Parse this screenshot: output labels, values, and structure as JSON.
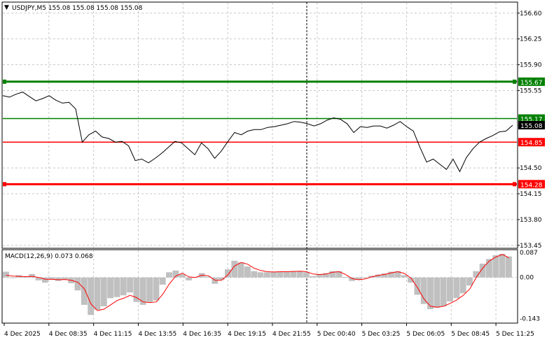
{
  "header": {
    "symbol_label": "USDJPY,M5  155.08 155.08 155.08 155.08",
    "macd_label": "MACD(12,26,9) 0.073 0.068"
  },
  "colors": {
    "price_line": "#000000",
    "grid": "#c8c8c8",
    "green_level": "#008000",
    "red_level": "#ff0000",
    "hist": "#c0c0c0",
    "signal": "#ff0000"
  },
  "chart_data": [
    {
      "type": "line",
      "name": "price",
      "y_ticks": [
        "156.60",
        "156.25",
        "155.90",
        "155.55",
        "155.17",
        "155.08",
        "154.85",
        "154.50",
        "154.28",
        "154.15",
        "153.80",
        "153.45"
      ],
      "ylim": [
        153.42,
        156.74
      ],
      "x_ticks": [
        "4 Dec 2025",
        "4 Dec 08:35",
        "4 Dec 11:15",
        "4 Dec 13:55",
        "4 Dec 16:35",
        "4 Dec 19:15",
        "4 Dec 21:55",
        "5 Dec 00:40",
        "5 Dec 03:25",
        "5 Dec 06:05",
        "5 Dec 08:45",
        "5 Dec 11:25"
      ],
      "levels": [
        {
          "value": 155.67,
          "label": "155.67",
          "color": "green",
          "style": "thick"
        },
        {
          "value": 155.17,
          "label": "155.17",
          "color": "green",
          "style": "thin"
        },
        {
          "value": 155.08,
          "label": "155.08",
          "color": "current",
          "style": "none"
        },
        {
          "value": 154.85,
          "label": "154.85",
          "color": "red",
          "style": "thin"
        },
        {
          "value": 154.28,
          "label": "154.28",
          "color": "red",
          "style": "thick"
        }
      ],
      "y": [
        155.48,
        155.46,
        155.5,
        155.53,
        155.47,
        155.41,
        155.44,
        155.48,
        155.42,
        155.38,
        155.39,
        155.3,
        154.85,
        154.95,
        155.0,
        154.92,
        154.9,
        154.85,
        154.86,
        154.8,
        154.6,
        154.62,
        154.57,
        154.63,
        154.7,
        154.78,
        154.86,
        154.84,
        154.76,
        154.68,
        154.84,
        154.76,
        154.63,
        154.73,
        154.86,
        154.98,
        154.95,
        155.0,
        155.02,
        155.02,
        155.05,
        155.06,
        155.08,
        155.1,
        155.13,
        155.12,
        155.1,
        155.07,
        155.1,
        155.15,
        155.18,
        155.16,
        155.1,
        154.98,
        155.06,
        155.05,
        155.07,
        155.07,
        155.04,
        155.08,
        155.13,
        155.06,
        155.0,
        154.78,
        154.58,
        154.62,
        154.55,
        154.48,
        154.62,
        154.45,
        154.64,
        154.76,
        154.85,
        154.9,
        154.94,
        154.99,
        155.0,
        155.08
      ]
    },
    {
      "type": "bar",
      "name": "MACD(12,26,9)",
      "y_ticks": [
        "0.087",
        "0.00",
        "-0.143"
      ],
      "ylim": [
        -0.156,
        0.094
      ],
      "histogram": [
        0.02,
        -0.002,
        0.008,
        0.002,
        0.012,
        -0.01,
        -0.018,
        -0.008,
        -0.012,
        -0.007,
        -0.02,
        -0.045,
        -0.095,
        -0.13,
        -0.112,
        -0.1,
        -0.072,
        -0.068,
        -0.062,
        -0.052,
        -0.085,
        -0.095,
        -0.085,
        -0.08,
        -0.025,
        0.018,
        0.024,
        0.012,
        -0.01,
        0.002,
        0.015,
        0.003,
        -0.022,
        -0.008,
        0.028,
        0.058,
        0.052,
        0.038,
        0.022,
        0.018,
        0.018,
        0.019,
        0.02,
        0.02,
        0.022,
        0.022,
        0.018,
        0.005,
        0.012,
        0.015,
        0.022,
        0.022,
        0.002,
        -0.012,
        -0.008,
        -0.002,
        0.006,
        0.01,
        0.014,
        0.02,
        0.022,
        0.008,
        -0.018,
        -0.06,
        -0.092,
        -0.11,
        -0.105,
        -0.1,
        -0.083,
        -0.072,
        -0.055,
        -0.028,
        0.022,
        0.048,
        0.064,
        0.077,
        0.082,
        0.073
      ],
      "signal": [
        0.008,
        0.005,
        0.004,
        0.003,
        0.004,
        0.0,
        -0.006,
        -0.006,
        -0.008,
        -0.007,
        -0.01,
        -0.017,
        -0.04,
        -0.092,
        -0.115,
        -0.11,
        -0.095,
        -0.08,
        -0.072,
        -0.062,
        -0.07,
        -0.085,
        -0.087,
        -0.085,
        -0.058,
        -0.022,
        0.005,
        0.015,
        0.002,
        0.0,
        0.008,
        0.006,
        -0.01,
        -0.01,
        0.01,
        0.04,
        0.052,
        0.046,
        0.032,
        0.024,
        0.02,
        0.019,
        0.02,
        0.02,
        0.021,
        0.022,
        0.02,
        0.012,
        0.01,
        0.012,
        0.018,
        0.02,
        0.01,
        -0.004,
        -0.008,
        -0.005,
        0.002,
        0.007,
        0.011,
        0.016,
        0.02,
        0.014,
        -0.002,
        -0.035,
        -0.075,
        -0.1,
        -0.103,
        -0.1,
        -0.09,
        -0.078,
        -0.062,
        -0.04,
        0.0,
        0.033,
        0.057,
        0.071,
        0.08,
        0.068
      ]
    }
  ]
}
